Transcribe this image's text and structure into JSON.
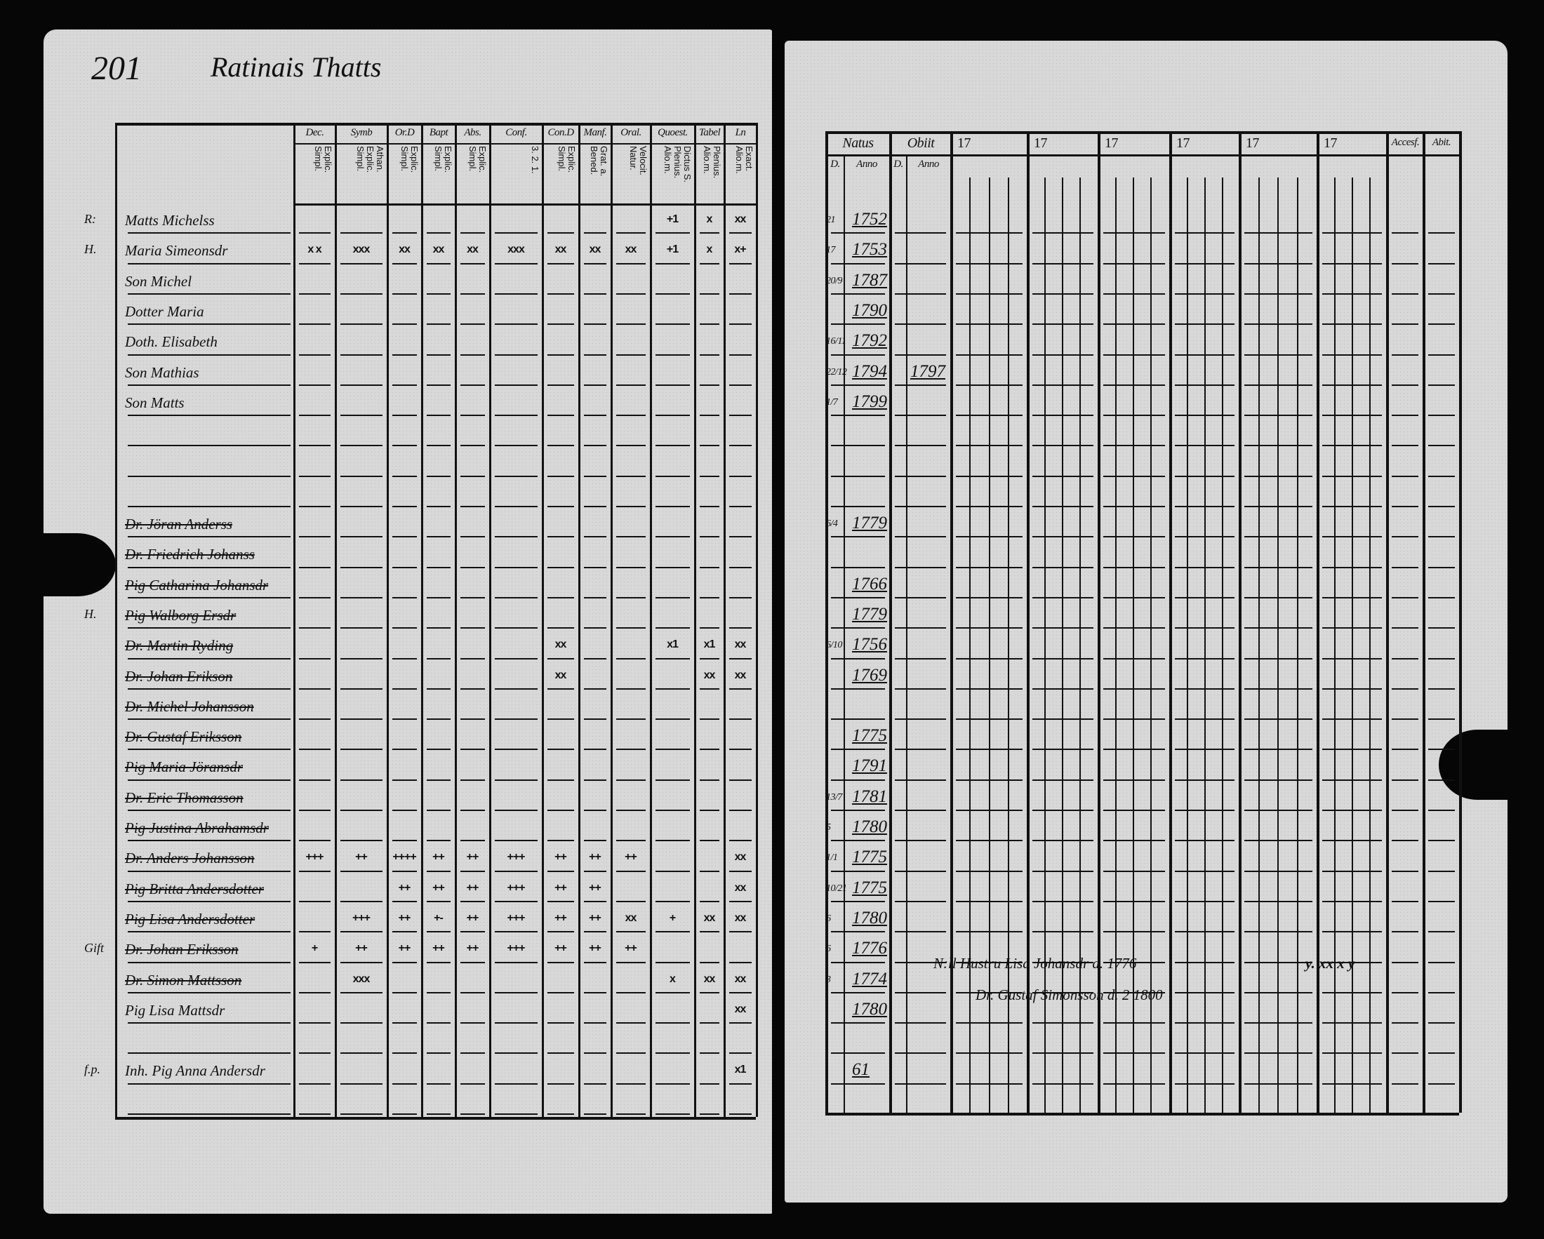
{
  "left_page": {
    "page_number": "201",
    "heading": "Ratinais Thatts",
    "columns": [
      {
        "label": "Dec.",
        "sub": "Explic. Simpl."
      },
      {
        "label": "Symb",
        "sub": "Athan. Explic. Simpl."
      },
      {
        "label": "Or.D",
        "sub": "Explic. Simpl."
      },
      {
        "label": "Bapt",
        "sub": "Explic. Simpl."
      },
      {
        "label": "Abs.",
        "sub": "Explic. Simpl."
      },
      {
        "label": "Conf.",
        "sub": "3. 2. 1."
      },
      {
        "label": "Con.D",
        "sub": "Explic. Simpl."
      },
      {
        "label": "Manf.",
        "sub": "Grat. a. Bened."
      },
      {
        "label": "Oral.",
        "sub": "Velocit. Natur."
      },
      {
        "label": "Quoest.",
        "sub": "Dictus S. Plenius. Alio.m."
      },
      {
        "label": "Tabel",
        "sub": "Plenius. Alio.m."
      },
      {
        "label": "Ln",
        "sub": "Exact. Alio.m."
      }
    ],
    "rows": [
      {
        "margin": "R:",
        "name": "Matts Michelss",
        "struck": false,
        "marks": {
          "9": "+1",
          "10": "x",
          "11": "xx"
        }
      },
      {
        "margin": "H.",
        "name": "Maria Simeonsdr",
        "struck": false,
        "marks": {
          "0": "x x",
          "1": "xxx",
          "2": "xx",
          "3": "xx",
          "4": "xx",
          "5": "xxx",
          "6": "xx",
          "7": "xx",
          "8": "xx",
          "9": "+1",
          "10": "x",
          "11": "x+"
        }
      },
      {
        "name": "Son Michel",
        "struck": false
      },
      {
        "name": "Dotter Maria",
        "struck": false
      },
      {
        "name": "Doth. Elisabeth",
        "struck": false
      },
      {
        "name": "Son Mathias",
        "struck": false
      },
      {
        "name": "Son Matts",
        "struck": false
      },
      {
        "name": ""
      },
      {
        "name": ""
      },
      {
        "name": ""
      },
      {
        "name": "Dr. Jöran Anderss",
        "struck": true
      },
      {
        "name": "Dr. Friedrich Johanss",
        "struck": true
      },
      {
        "name": "Pig Catharina Johansdr",
        "struck": true
      },
      {
        "margin": "H.",
        "name": "Pig Walborg Ersdr",
        "struck": true
      },
      {
        "name": "Dr. Martin Ryding",
        "struck": true,
        "marks": {
          "6": "xx",
          "9": "x1",
          "10": "x1",
          "11": "xx"
        }
      },
      {
        "name": "Dr. Johan Erikson",
        "struck": true,
        "marks": {
          "6": "xx",
          "10": "xx",
          "11": "xx"
        }
      },
      {
        "name": "Dr. Michel Johansson",
        "struck": true
      },
      {
        "name": "Dr. Gustaf Eriksson",
        "struck": true
      },
      {
        "name": "Pig Maria Jöransdr",
        "struck": true
      },
      {
        "name": "Dr. Eric Thomasson",
        "struck": true
      },
      {
        "name": "Pig Justina Abrahamsdr",
        "struck": true
      },
      {
        "name": "Dr. Anders Johansson",
        "struck": true,
        "marks": {
          "0": "+++",
          "1": "++",
          "2": "++++",
          "3": "++",
          "4": "++",
          "5": "+++",
          "6": "++",
          "7": "++",
          "8": "++",
          "11": "xx"
        }
      },
      {
        "name": "Pig Britta Andersdotter",
        "struck": true,
        "marks": {
          "2": "++",
          "3": "++",
          "4": "++",
          "5": "+++",
          "6": "++",
          "7": "++",
          "11": "xx"
        }
      },
      {
        "name": "Pig Lisa Andersdotter",
        "struck": true,
        "marks": {
          "1": "+++",
          "2": "++",
          "3": "+-",
          "4": "++",
          "5": "+++",
          "6": "++",
          "7": "++",
          "8": "xx",
          "9": "+",
          "10": "xx",
          "11": "xx"
        }
      },
      {
        "margin": "Gift",
        "name": "Dr. Johan Eriksson",
        "struck": true,
        "marks": {
          "0": "+",
          "1": "++",
          "2": "++",
          "3": "++",
          "4": "++",
          "5": "+++",
          "6": "++",
          "7": "++",
          "8": "++"
        }
      },
      {
        "name": "Dr. Simon Mattsson",
        "struck": true,
        "marks": {
          "1": "xxx",
          "9": "x",
          "10": "xx",
          "11": "xx"
        }
      },
      {
        "name": "Pig Lisa Mattsdr",
        "struck": false,
        "marks": {
          "11": "xx"
        }
      },
      {
        "name": ""
      },
      {
        "margin": "f.p.",
        "name": "Inh. Pig Anna Andersdr",
        "struck": false,
        "marks": {
          "11": "x1"
        }
      },
      {
        "name": ""
      }
    ]
  },
  "right_page": {
    "headers": {
      "natus": "Natus",
      "obiit": "Obiit",
      "natus_day": "D.",
      "natus_anno": "Anno",
      "obiit_day": "D.",
      "obiit_anno": "Anno",
      "year_groups": [
        "17",
        "17",
        "17",
        "17",
        "17",
        "17"
      ],
      "accessit": "Accesf.",
      "abiit": "Abit."
    },
    "entries": [
      {
        "day": "21",
        "year": "1752"
      },
      {
        "day": "17",
        "year": "1753"
      },
      {
        "day": "20/9",
        "year": "1787"
      },
      {
        "day": "",
        "year": "1790"
      },
      {
        "day": "16/11",
        "year": "1792"
      },
      {
        "day": "22/12",
        "year": "1794",
        "obiit": "1797"
      },
      {
        "day": "1/7",
        "year": "1799"
      },
      {},
      {},
      {},
      {
        "day": "6/4",
        "year": "1779"
      },
      {},
      {
        "day": "",
        "year": "1766"
      },
      {
        "day": "",
        "year": "1779"
      },
      {
        "day": "6/10",
        "year": "1756"
      },
      {
        "day": "",
        "year": "1769"
      },
      {},
      {
        "day": "",
        "year": "1775"
      },
      {
        "day": "",
        "year": "1791"
      },
      {
        "day": "13/7",
        "year": "1781"
      },
      {
        "day": "5",
        "year": "1780"
      },
      {
        "day": "1/1",
        "year": "1775"
      },
      {
        "day": "10/21",
        "year": "1775"
      },
      {
        "day": "6",
        "year": "1780"
      },
      {
        "day": "6",
        "year": "1776"
      },
      {
        "day": "3",
        "year": "1774"
      },
      {
        "day": "",
        "year": "1780"
      },
      {},
      {
        "day": "",
        "year": "61"
      },
      {}
    ],
    "notes": [
      "N:ll Hustru Lisa Johansdr d. 1776",
      "Dr. Gustaf Simonsson d. 2 1800"
    ],
    "side_marks": "y. xx x y"
  }
}
